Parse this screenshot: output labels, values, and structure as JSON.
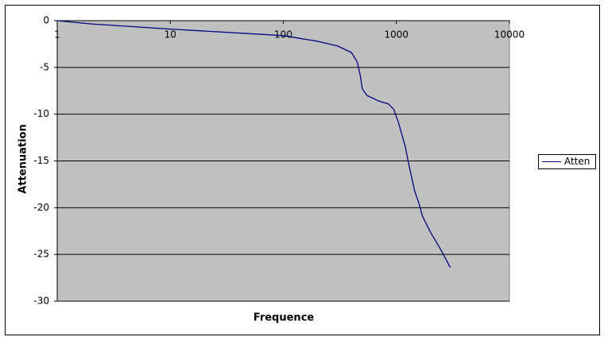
{
  "chart_data": {
    "type": "line",
    "xlabel": "Frequence",
    "ylabel": "Attenuation",
    "x": [
      1,
      2,
      10,
      100,
      200,
      300,
      400,
      450,
      480,
      500,
      550,
      700,
      850,
      950,
      1050,
      1200,
      1300,
      1450,
      1600,
      1700,
      2000,
      2500,
      3000
    ],
    "series": [
      {
        "name": "Atten",
        "color": "#000080",
        "values": [
          0,
          -0.35,
          -0.9,
          -1.6,
          -2.2,
          -2.7,
          -3.4,
          -4.4,
          -5.9,
          -7.3,
          -8.0,
          -8.6,
          -8.9,
          -9.5,
          -11,
          -13.5,
          -15.6,
          -18.2,
          -19.7,
          -20.9,
          -22.6,
          -24.6,
          -26.4
        ]
      }
    ],
    "xscale": "log",
    "xlim": [
      1,
      10000
    ],
    "xticks": [
      1,
      10,
      100,
      1000,
      10000
    ],
    "ylim": [
      -30,
      0
    ],
    "yticks": [
      0,
      -5,
      -10,
      -15,
      -20,
      -25,
      -30
    ],
    "grid": true,
    "legend": "right",
    "plot_background": "#c0c0c0"
  }
}
